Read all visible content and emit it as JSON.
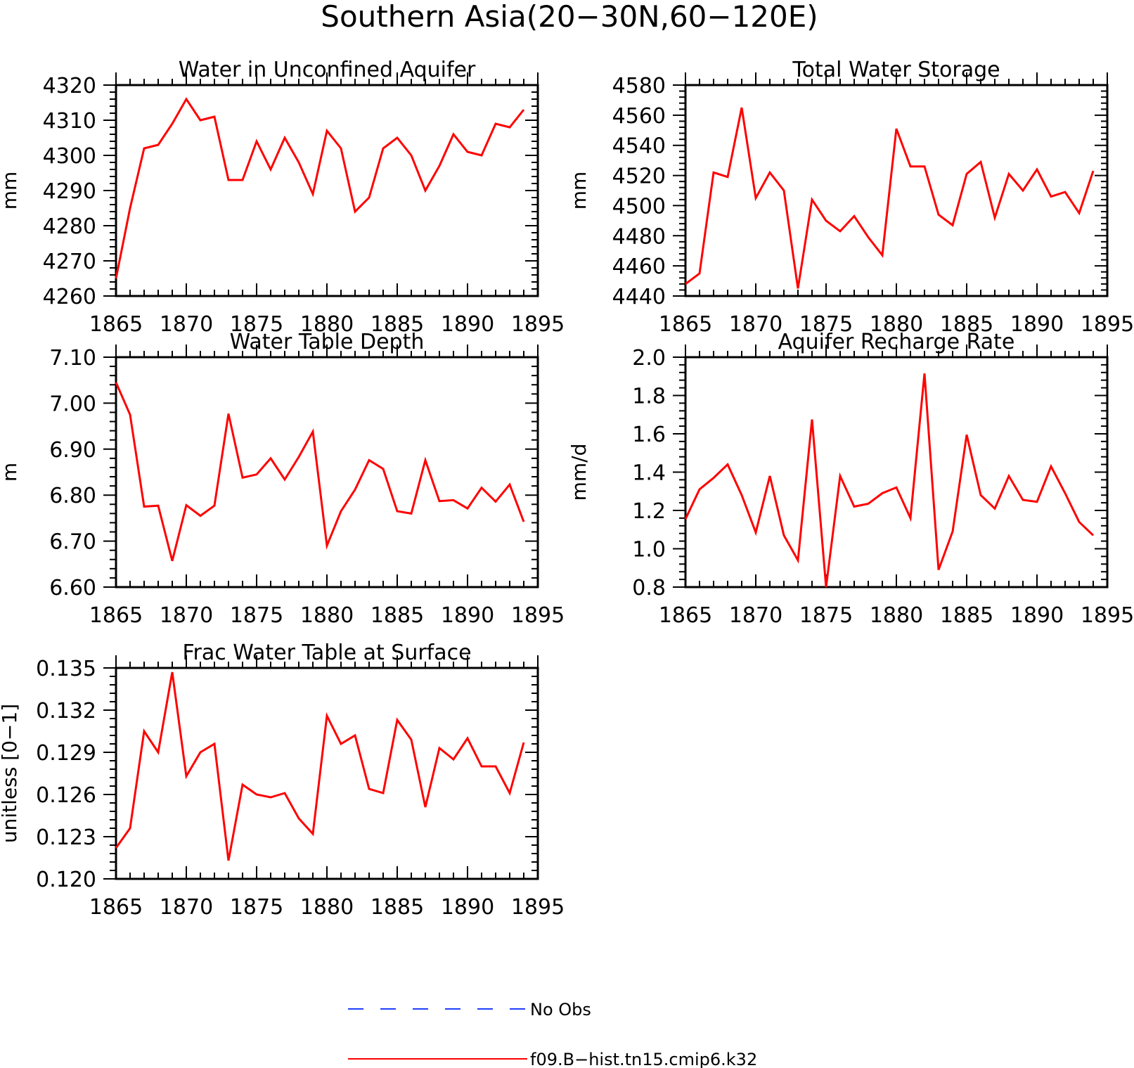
{
  "figure": {
    "title": "Southern Asia(20−30N,60−120E)"
  },
  "colors": {
    "model": "#ff0000",
    "obs": "#1f3fff",
    "axis": "#000000"
  },
  "legend": [
    {
      "label": "No Obs",
      "color": "#1f3fff",
      "style": "dashed"
    },
    {
      "label": "f09.B−hist.tn15.cmip6.k32",
      "color": "#ff0000",
      "style": "solid"
    }
  ],
  "chart_data": [
    {
      "type": "line",
      "title": "Water in Unconfined Aquifer",
      "ylabel": "mm",
      "xlim": [
        1865,
        1895
      ],
      "ylim": [
        4260,
        4320
      ],
      "xticks": [
        "1865",
        "1870",
        "1875",
        "1880",
        "1885",
        "1890",
        "1895"
      ],
      "yticks": [
        "4260",
        "4270",
        "4280",
        "4290",
        "4300",
        "4310",
        "4320"
      ],
      "x": [
        1865,
        1866,
        1867,
        1868,
        1869,
        1870,
        1871,
        1872,
        1873,
        1874,
        1875,
        1876,
        1877,
        1878,
        1879,
        1880,
        1881,
        1882,
        1883,
        1884,
        1885,
        1886,
        1887,
        1888,
        1889,
        1890,
        1891,
        1892,
        1893,
        1894
      ],
      "series": [
        {
          "name": "f09.B−hist.tn15.cmip6.k32",
          "values": [
            4265,
            4285,
            4302,
            4303,
            4309,
            4316,
            4310,
            4311,
            4293,
            4293,
            4304,
            4296,
            4305,
            4298,
            4289,
            4307,
            4302,
            4284,
            4288,
            4302,
            4305,
            4300,
            4290,
            4297,
            4306,
            4301,
            4300,
            4309,
            4308,
            4313
          ]
        }
      ]
    },
    {
      "type": "line",
      "title": "Total Water Storage",
      "ylabel": "mm",
      "xlim": [
        1865,
        1895
      ],
      "ylim": [
        4440,
        4580
      ],
      "xticks": [
        "1865",
        "1870",
        "1875",
        "1880",
        "1885",
        "1890",
        "1895"
      ],
      "yticks": [
        "4440",
        "4460",
        "4480",
        "4500",
        "4520",
        "4540",
        "4560",
        "4580"
      ],
      "x": [
        1865,
        1866,
        1867,
        1868,
        1869,
        1870,
        1871,
        1872,
        1873,
        1874,
        1875,
        1876,
        1877,
        1878,
        1879,
        1880,
        1881,
        1882,
        1883,
        1884,
        1885,
        1886,
        1887,
        1888,
        1889,
        1890,
        1891,
        1892,
        1893,
        1894
      ],
      "series": [
        {
          "name": "f09.B−hist.tn15.cmip6.k32",
          "values": [
            4448,
            4455,
            4522,
            4519,
            4565,
            4505,
            4522,
            4510,
            4445,
            4504,
            4490,
            4483,
            4493,
            4479,
            4467,
            4551,
            4526,
            4526,
            4494,
            4487,
            4521,
            4529,
            4492,
            4521,
            4510,
            4524,
            4506,
            4509,
            4495,
            4523
          ]
        }
      ]
    },
    {
      "type": "line",
      "title": "Water Table Depth",
      "ylabel": "m",
      "xlim": [
        1865,
        1895
      ],
      "ylim": [
        6.6,
        7.1
      ],
      "xticks": [
        "1865",
        "1870",
        "1875",
        "1880",
        "1885",
        "1890",
        "1895"
      ],
      "yticks": [
        "6.60",
        "6.70",
        "6.80",
        "6.90",
        "7.00",
        "7.10"
      ],
      "x": [
        1865,
        1866,
        1867,
        1868,
        1869,
        1870,
        1871,
        1872,
        1873,
        1874,
        1875,
        1876,
        1877,
        1878,
        1879,
        1880,
        1881,
        1882,
        1883,
        1884,
        1885,
        1886,
        1887,
        1888,
        1889,
        1890,
        1891,
        1892,
        1893,
        1894
      ],
      "series": [
        {
          "name": "f09.B−hist.tn15.cmip6.k32",
          "values": [
            7.045,
            6.975,
            6.775,
            6.777,
            6.657,
            6.778,
            6.755,
            6.777,
            6.977,
            6.838,
            6.845,
            6.88,
            6.834,
            6.883,
            6.938,
            6.69,
            6.765,
            6.812,
            6.876,
            6.857,
            6.765,
            6.76,
            6.876,
            6.787,
            6.789,
            6.771,
            6.816,
            6.786,
            6.823,
            6.742
          ]
        }
      ]
    },
    {
      "type": "line",
      "title": "Aquifer Recharge Rate",
      "ylabel": "mm/d",
      "xlim": [
        1865,
        1895
      ],
      "ylim": [
        0.8,
        2.0
      ],
      "xticks": [
        "1865",
        "1870",
        "1875",
        "1880",
        "1885",
        "1890",
        "1895"
      ],
      "yticks": [
        "0.8",
        "1.0",
        "1.2",
        "1.4",
        "1.6",
        "1.8",
        "2.0"
      ],
      "x": [
        1865,
        1866,
        1867,
        1868,
        1869,
        1870,
        1871,
        1872,
        1873,
        1874,
        1875,
        1876,
        1877,
        1878,
        1879,
        1880,
        1881,
        1882,
        1883,
        1884,
        1885,
        1886,
        1887,
        1888,
        1889,
        1890,
        1891,
        1892,
        1893,
        1894
      ],
      "series": [
        {
          "name": "f09.B−hist.tn15.cmip6.k32",
          "values": [
            1.155,
            1.31,
            1.37,
            1.44,
            1.28,
            1.085,
            1.38,
            1.07,
            0.94,
            1.675,
            0.8,
            1.38,
            1.22,
            1.235,
            1.29,
            1.32,
            1.16,
            1.915,
            0.89,
            1.09,
            1.595,
            1.28,
            1.21,
            1.38,
            1.255,
            1.245,
            1.43,
            1.29,
            1.14,
            1.07
          ]
        }
      ]
    },
    {
      "type": "line",
      "title": "Frac Water Table at Surface",
      "ylabel": "unitless [0−1]",
      "xlim": [
        1865,
        1895
      ],
      "ylim": [
        0.12,
        0.135
      ],
      "xticks": [
        "1865",
        "1870",
        "1875",
        "1880",
        "1885",
        "1890",
        "1895"
      ],
      "yticks": [
        "0.120",
        "0.123",
        "0.126",
        "0.129",
        "0.132",
        "0.135"
      ],
      "x": [
        1865,
        1866,
        1867,
        1868,
        1869,
        1870,
        1871,
        1872,
        1873,
        1874,
        1875,
        1876,
        1877,
        1878,
        1879,
        1880,
        1881,
        1882,
        1883,
        1884,
        1885,
        1886,
        1887,
        1888,
        1889,
        1890,
        1891,
        1892,
        1893,
        1894
      ],
      "series": [
        {
          "name": "f09.B−hist.tn15.cmip6.k32",
          "values": [
            0.1222,
            0.1236,
            0.1305,
            0.129,
            0.1347,
            0.1273,
            0.129,
            0.1296,
            0.1213,
            0.1267,
            0.126,
            0.1258,
            0.1261,
            0.1243,
            0.1232,
            0.1316,
            0.1296,
            0.1302,
            0.1264,
            0.1261,
            0.1313,
            0.1299,
            0.1251,
            0.1293,
            0.1285,
            0.13,
            0.128,
            0.128,
            0.1261,
            0.1297
          ]
        }
      ]
    }
  ]
}
